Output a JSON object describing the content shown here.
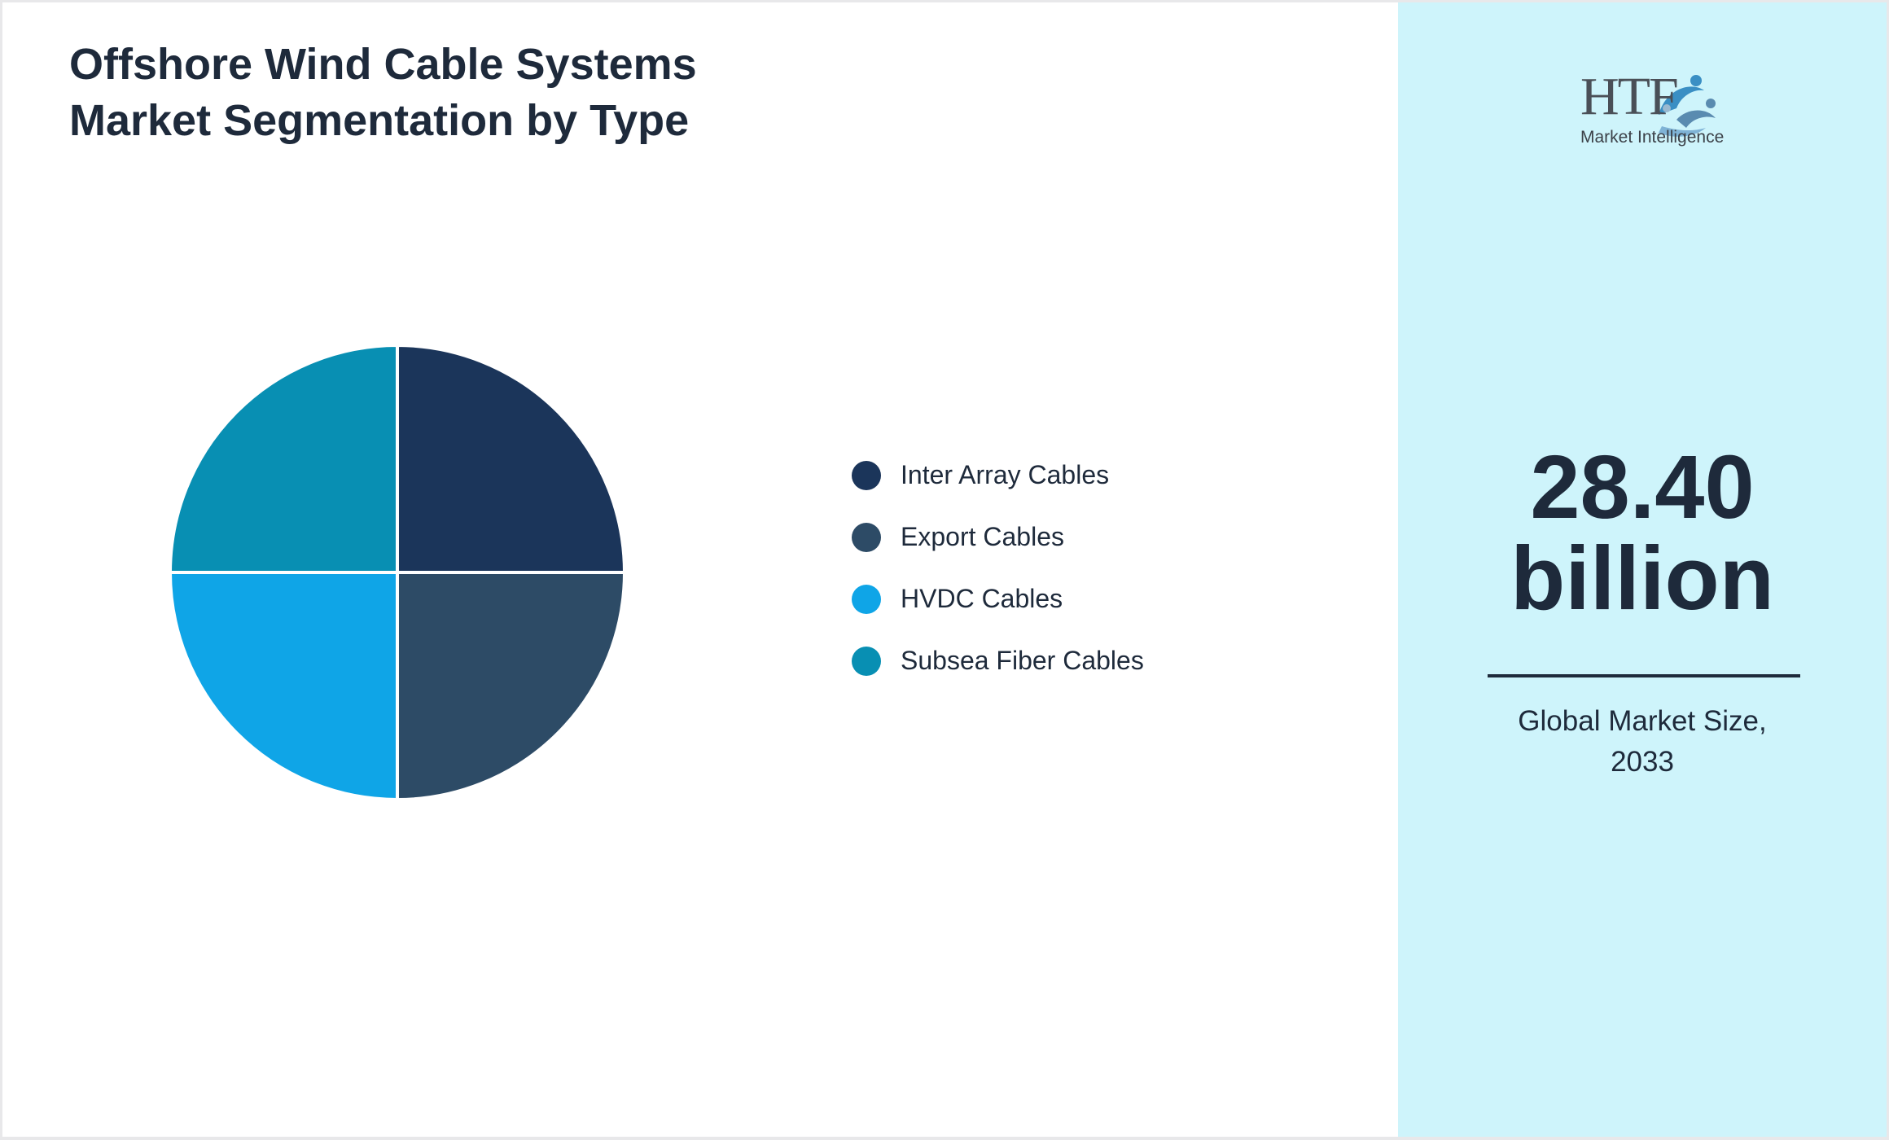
{
  "title": {
    "line1": "Offshore Wind Cable Systems",
    "line2": "Market Segmentation by Type"
  },
  "chart_data": {
    "type": "pie",
    "categories": [
      "Inter Array Cables",
      "Export Cables",
      "HVDC Cables",
      "Subsea Fiber Cables"
    ],
    "values": [
      25,
      25,
      25,
      25
    ],
    "colors": [
      "#1b355a",
      "#2d4b66",
      "#0fa5e7",
      "#088fb3"
    ],
    "legend_position": "right"
  },
  "sidebar": {
    "logo": {
      "brand": "HTF",
      "tagline": "Market Intelligence"
    },
    "market_size": {
      "value": "28.40",
      "unit": "billion"
    },
    "caption": {
      "line1": "Global Market Size,",
      "line2": "2033"
    },
    "background_color": "#cef4fb"
  }
}
